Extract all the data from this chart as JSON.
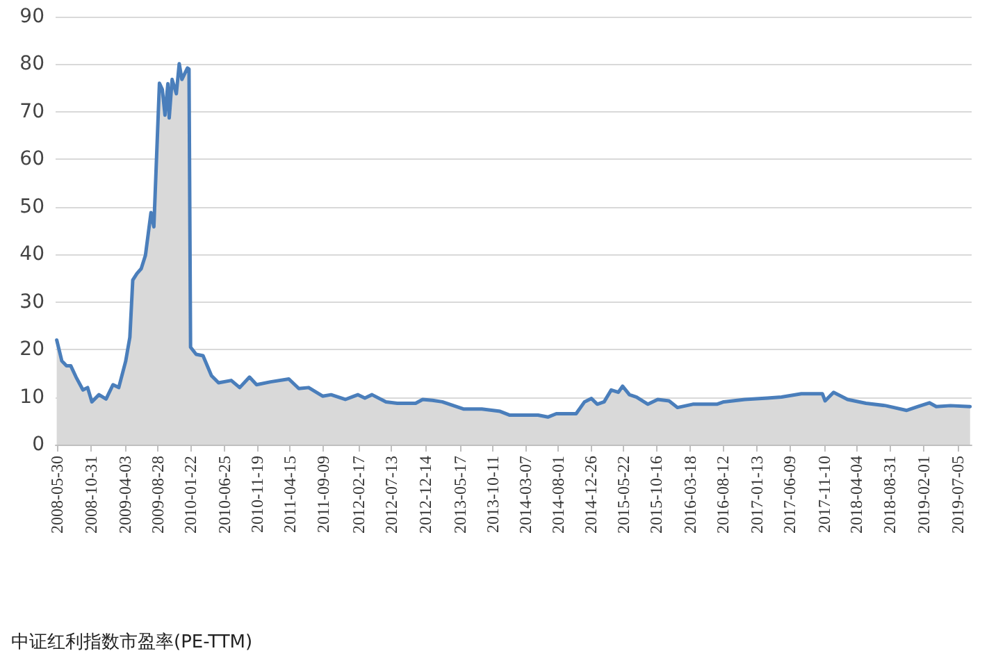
{
  "chart_data": {
    "type": "area",
    "annotations": [
      "中证红利指数市盈率(PE-TTM)"
    ],
    "x": [
      "2008-05-30",
      "2008-06-22",
      "2008-07-13",
      "2008-08-01",
      "2008-08-25",
      "2008-09-25",
      "2008-10-16",
      "2008-11-04",
      "2008-12-06",
      "2009-01-07",
      "2009-02-07",
      "2009-03-05",
      "2009-04-05",
      "2009-04-24",
      "2009-05-07",
      "2009-05-26",
      "2009-06-14",
      "2009-07-03",
      "2009-07-28",
      "2009-08-10",
      "2009-09-04",
      "2009-09-17",
      "2009-09-29",
      "2009-10-12",
      "2009-10-18",
      "2009-10-31",
      "2009-11-19",
      "2009-12-02",
      "2009-12-14",
      "2010-01-08",
      "2010-01-15",
      "2010-01-22",
      "2010-02-16",
      "2010-03-19",
      "2010-04-26",
      "2010-05-28",
      "2010-07-24",
      "2010-08-31",
      "2010-10-14",
      "2010-11-15",
      "2011-01-17",
      "2011-04-09",
      "2011-05-24",
      "2011-07-07",
      "2011-09-08",
      "2011-10-16",
      "2011-12-19",
      "2012-02-14",
      "2012-03-16",
      "2012-04-17",
      "2012-06-19",
      "2012-08-09",
      "2012-10-30",
      "2012-12-01",
      "2013-01-14",
      "2013-02-27",
      "2013-04-19",
      "2013-06-02",
      "2013-08-24",
      "2013-11-14",
      "2013-12-28",
      "2014-05-04",
      "2014-06-17",
      "2014-07-25",
      "2014-10-22",
      "2014-11-29",
      "2014-12-30",
      "2015-01-25",
      "2015-02-25",
      "2015-03-29",
      "2015-04-30",
      "2015-05-19",
      "2015-06-19",
      "2015-07-21",
      "2015-09-10",
      "2015-10-24",
      "2015-12-14",
      "2016-01-21",
      "2016-03-30",
      "2016-07-16",
      "2016-08-16",
      "2016-11-19",
      "2017-03-01",
      "2017-05-03",
      "2017-07-31",
      "2017-11-03",
      "2017-11-15",
      "2017-12-23",
      "2018-02-24",
      "2018-05-18",
      "2018-08-14",
      "2018-11-17",
      "2019-01-07",
      "2019-02-27",
      "2019-03-30",
      "2019-06-02",
      "2019-08-29"
    ],
    "series": [
      {
        "color": "#4a7ebb",
        "values": [
          22,
          17.6,
          16.6,
          16.6,
          14.2,
          11.5,
          12,
          9,
          10.5,
          9.6,
          12.6,
          12,
          17.5,
          22.6,
          34.6,
          36,
          37,
          39.8,
          48.8,
          45.8,
          76,
          74.7,
          69.3,
          75.9,
          68.7,
          76.8,
          73.8,
          80.1,
          76.8,
          79.2,
          79,
          20.5,
          19,
          18.7,
          14.5,
          13,
          13.5,
          12,
          14.2,
          12.6,
          13.2,
          13.8,
          11.8,
          12,
          10.2,
          10.5,
          9.5,
          10.5,
          9.8,
          10.5,
          9,
          8.7,
          8.7,
          9.5,
          9.3,
          9,
          8.2,
          7.5,
          7.5,
          7,
          6.2,
          6.2,
          5.8,
          6.5,
          6.5,
          9,
          9.7,
          8.5,
          9,
          11.5,
          11,
          12.3,
          10.5,
          10,
          8.5,
          9.5,
          9.2,
          7.8,
          8.5,
          8.5,
          9,
          9.5,
          9.8,
          10,
          10.7,
          10.7,
          9.2,
          11,
          9.5,
          8.7,
          8.2,
          7.2,
          8,
          8.8,
          8,
          8.2,
          8
        ]
      }
    ],
    "xlim": [
      "2008-05-25",
      "2019-09-05"
    ],
    "xticks": [
      "2008-05-30",
      "2008-10-31",
      "2009-04-03",
      "2009-08-28",
      "2010-01-22",
      "2010-06-25",
      "2010-11-19",
      "2011-04-15",
      "2011-09-09",
      "2012-02-17",
      "2012-07-13",
      "2012-12-14",
      "2013-05-17",
      "2013-10-11",
      "2014-03-07",
      "2014-08-01",
      "2014-12-26",
      "2015-05-22",
      "2015-10-16",
      "2016-03-18",
      "2016-08-12",
      "2017-01-13",
      "2017-06-09",
      "2017-11-10",
      "2018-04-04",
      "2018-08-31",
      "2019-02-01",
      "2019-07-05"
    ],
    "ylim": [
      0,
      90
    ],
    "yticks": [
      0,
      10,
      20,
      30,
      40,
      50,
      60,
      70,
      80,
      90
    ],
    "grid": "y",
    "marker": "none",
    "line_style": "solid"
  }
}
